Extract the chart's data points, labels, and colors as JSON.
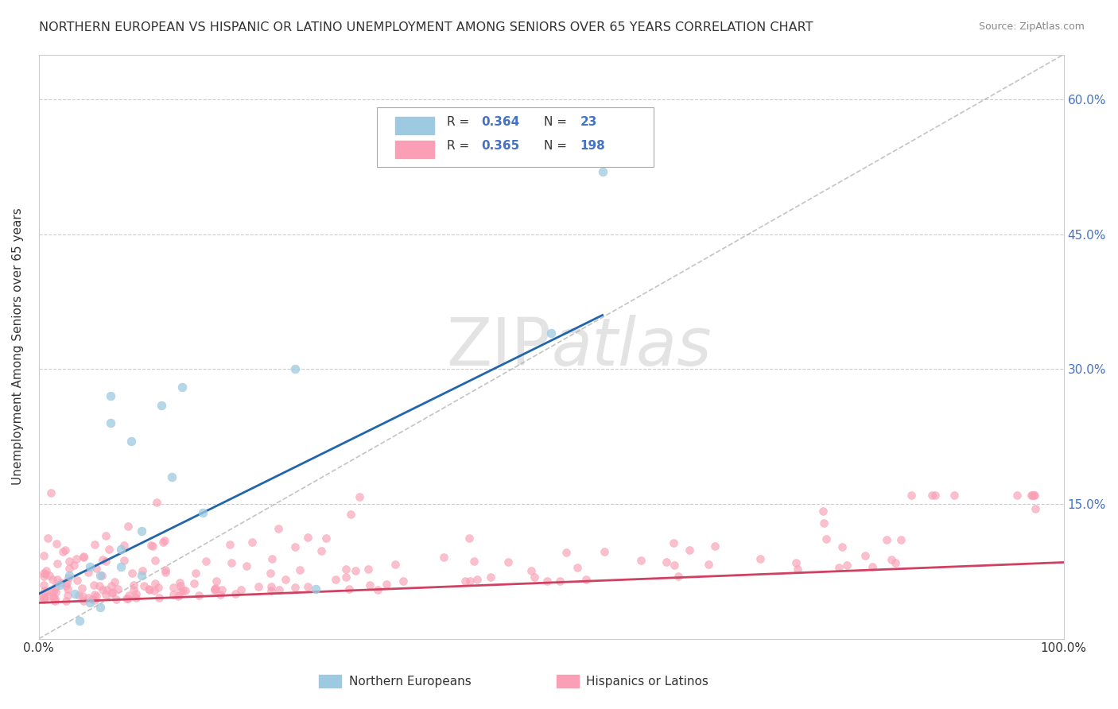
{
  "title": "NORTHERN EUROPEAN VS HISPANIC OR LATINO UNEMPLOYMENT AMONG SENIORS OVER 65 YEARS CORRELATION CHART",
  "source": "Source: ZipAtlas.com",
  "ylabel": "Unemployment Among Seniors over 65 years",
  "xlim": [
    0,
    1.0
  ],
  "ylim": [
    0,
    0.65
  ],
  "ytick_positions": [
    0.0,
    0.15,
    0.3,
    0.45,
    0.6
  ],
  "ytick_labels_right": [
    "",
    "15.0%",
    "30.0%",
    "45.0%",
    "60.0%"
  ],
  "blue_color": "#9ecae1",
  "pink_color": "#fa9fb5",
  "blue_line_color": "#2166ac",
  "pink_line_color": "#d04060",
  "dashed_line_color": "#aaaaaa",
  "blue_scatter_x": [
    0.02,
    0.03,
    0.035,
    0.04,
    0.05,
    0.05,
    0.06,
    0.06,
    0.07,
    0.07,
    0.08,
    0.08,
    0.09,
    0.1,
    0.1,
    0.12,
    0.13,
    0.14,
    0.16,
    0.25,
    0.27,
    0.5,
    0.55
  ],
  "blue_scatter_y": [
    0.06,
    0.07,
    0.05,
    0.02,
    0.08,
    0.04,
    0.07,
    0.035,
    0.24,
    0.27,
    0.1,
    0.08,
    0.22,
    0.12,
    0.07,
    0.26,
    0.18,
    0.28,
    0.14,
    0.3,
    0.055,
    0.34,
    0.52
  ],
  "blue_trend_x": [
    0.0,
    0.55
  ],
  "blue_trend_y": [
    0.05,
    0.36
  ],
  "pink_trend_x": [
    0.0,
    1.0
  ],
  "pink_trend_y": [
    0.04,
    0.085
  ],
  "dashed_trend_x": [
    0.0,
    1.0
  ],
  "dashed_trend_y": [
    0.0,
    0.65
  ],
  "legend_r1": "0.364",
  "legend_n1": "23",
  "legend_r2": "0.365",
  "legend_n2": "198",
  "label_blue": "Northern Europeans",
  "label_pink": "Hispanics or Latinos"
}
